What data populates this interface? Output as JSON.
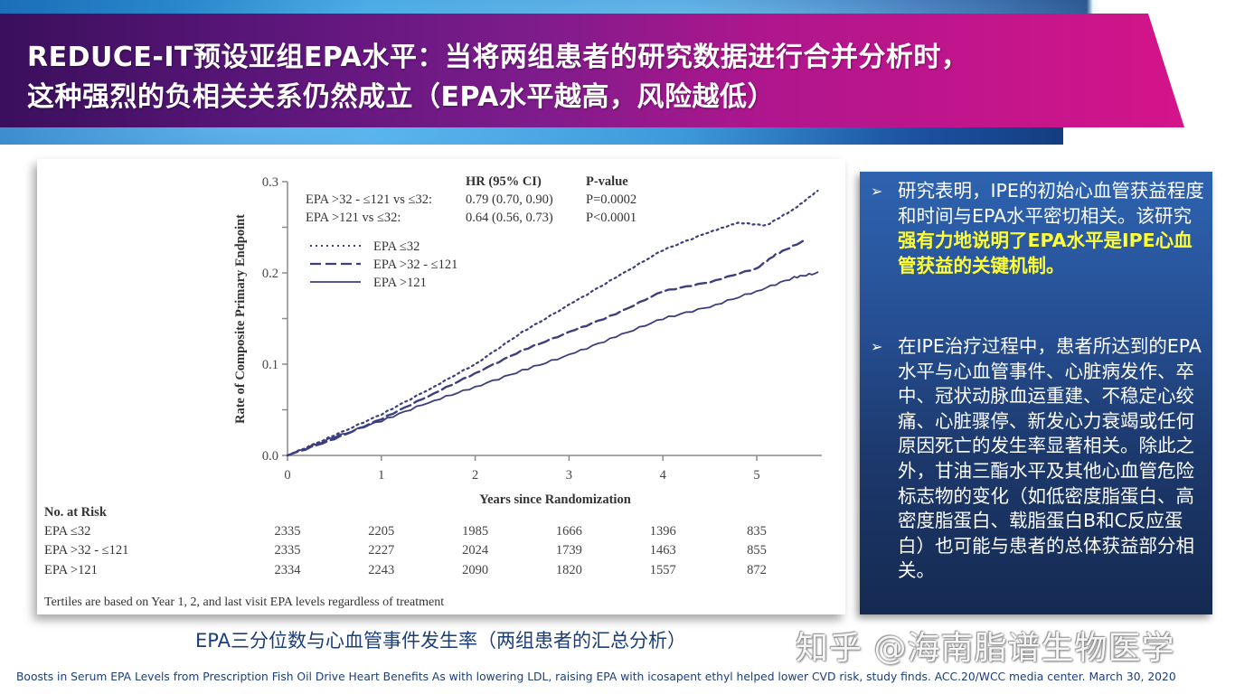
{
  "slide": {
    "title_line1": "REDUCE-IT预设亚组EPA水平：当将两组患者的研究数据进行合并分析时，",
    "title_line2": "这种强烈的负相关关系仍然成立（EPA水平越高，风险越低）",
    "caption": "EPA三分位数与心血管事件发生率（两组患者的汇总分析）",
    "watermark": "知乎 @海南脂谱生物医学",
    "source": "Boosts in Serum EPA Levels from Prescription Fish Oil Drive Heart Benefits As with lowering LDL, raising EPA with icosapent ethyl helped lower CVD risk, study finds. ACC.20/WCC media center. March 30, 2020",
    "colors": {
      "title_band_start": "#3a0f5c",
      "title_band_end": "#d4148a",
      "panel_blue_top": "#2e63b0",
      "panel_blue_bottom": "#152a52",
      "highlight_yellow": "#ffff33",
      "curve_color": "#3b3f7e"
    }
  },
  "side_panel": {
    "bullet_icon": "arrow-bullet-icon",
    "bullets": [
      {
        "arrow": "➢",
        "text_before": "研究表明，IPE的初始心血管获益程度和时间与EPA水平密切相关。该研究",
        "text_highlight": "强有力地说明了EPA水平是IPE心血管获益的关键机制。"
      },
      {
        "arrow": "➢",
        "text_before": "在IPE治疗过程中，患者所达到的EPA水平与心血管事件、心脏病发作、卒中、冠状动脉血运重建、不稳定心绞痛、心脏骤停、新发心力衰竭或任何原因死亡的发生率显著相关。除此之外，甘油三酯水平及其他心血管危险标志物的变化（如低密度脂蛋白、高密度脂蛋白、载脂蛋白B和C反应蛋白）也可能与患者的总体获益部分相关。",
        "text_highlight": ""
      }
    ]
  },
  "chart_data": {
    "type": "line",
    "title": "",
    "xlabel": "Years since Randomization",
    "ylabel": "Rate of Composite Primary Endpoint",
    "xlim": [
      0,
      5.7
    ],
    "ylim": [
      0.0,
      0.3
    ],
    "x_ticks": [
      "0",
      "1",
      "2",
      "3",
      "4",
      "5"
    ],
    "y_ticks": [
      "0.0",
      "0.1",
      "0.2",
      "0.3"
    ],
    "grid": false,
    "legend_position": "upper-left",
    "stats_header": {
      "hr": "HR (95% CI)",
      "p": "P-value"
    },
    "stats": [
      {
        "label": "EPA >32 - ≤121 vs ≤32:",
        "hr": "0.79 (0.70, 0.90)",
        "p": "P=0.0002"
      },
      {
        "label": "EPA >121 vs ≤32:",
        "hr": "0.64 (0.56, 0.73)",
        "p": "P<0.0001"
      }
    ],
    "series": [
      {
        "name": "EPA ≤32",
        "style": "dotted",
        "x": [
          0,
          0.5,
          1,
          1.5,
          2,
          2.5,
          3,
          3.5,
          4,
          4.5,
          4.8,
          5.1,
          5.4,
          5.65
        ],
        "values": [
          0,
          0.022,
          0.045,
          0.072,
          0.1,
          0.135,
          0.165,
          0.195,
          0.225,
          0.245,
          0.255,
          0.252,
          0.27,
          0.29
        ]
      },
      {
        "name": "EPA >32 - ≤121",
        "style": "dashed",
        "x": [
          0,
          0.5,
          1,
          1.5,
          2,
          2.5,
          3,
          3.5,
          4,
          4.5,
          5,
          5.2,
          5.5
        ],
        "values": [
          0,
          0.018,
          0.04,
          0.065,
          0.09,
          0.115,
          0.135,
          0.155,
          0.18,
          0.19,
          0.205,
          0.22,
          0.235
        ]
      },
      {
        "name": "EPA >121",
        "style": "solid",
        "x": [
          0,
          0.5,
          1,
          1.5,
          2,
          2.5,
          3,
          3.5,
          4,
          4.5,
          5,
          5.4,
          5.65
        ],
        "values": [
          0,
          0.02,
          0.038,
          0.058,
          0.075,
          0.093,
          0.11,
          0.13,
          0.15,
          0.163,
          0.18,
          0.195,
          0.2
        ]
      }
    ],
    "at_risk": {
      "title": "No. at Risk",
      "rows": [
        {
          "label": "EPA ≤32",
          "values": [
            "2335",
            "2205",
            "1985",
            "1666",
            "1396",
            "835"
          ]
        },
        {
          "label": "EPA >32 - ≤121",
          "values": [
            "2335",
            "2227",
            "2024",
            "1739",
            "1463",
            "855"
          ]
        },
        {
          "label": "EPA >121",
          "values": [
            "2334",
            "2243",
            "2090",
            "1820",
            "1557",
            "872"
          ]
        }
      ]
    },
    "footnote": "Tertiles are based on Year 1, 2, and last visit EPA levels regardless of treatment"
  }
}
